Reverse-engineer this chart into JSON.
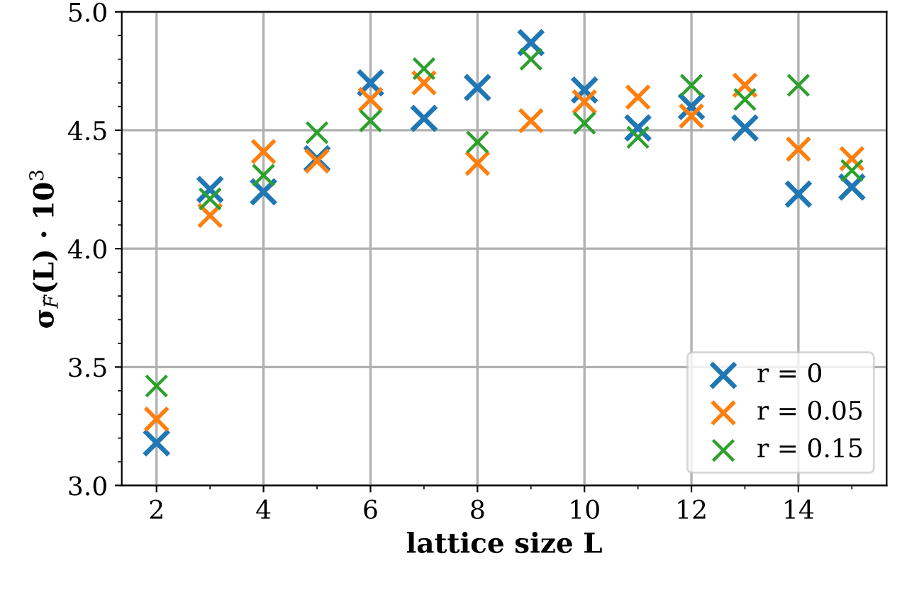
{
  "chart_data": {
    "type": "scatter",
    "xlabel": "lattice size L",
    "ylabel": "σ$_{F̃}$(L) · 10$^{3}$",
    "x": [
      2,
      3,
      4,
      5,
      6,
      7,
      8,
      9,
      10,
      11,
      12,
      13,
      14,
      15
    ],
    "series": [
      {
        "name": "r = 0",
        "color": "#1f77b4",
        "values": [
          3.18,
          4.25,
          4.24,
          4.38,
          4.7,
          4.55,
          4.68,
          4.87,
          4.67,
          4.51,
          4.6,
          4.51,
          4.23,
          4.26
        ]
      },
      {
        "name": "r = 0.05",
        "color": "#ff7f0e",
        "values": [
          3.28,
          4.14,
          4.41,
          4.37,
          4.63,
          4.7,
          4.36,
          4.54,
          4.62,
          4.64,
          4.56,
          4.69,
          4.42,
          4.38
        ]
      },
      {
        "name": "r = 0.15",
        "color": "#2ca02c",
        "values": [
          3.42,
          4.21,
          4.31,
          4.49,
          4.54,
          4.76,
          4.45,
          4.8,
          4.53,
          4.47,
          4.69,
          4.63,
          4.69,
          4.33
        ]
      }
    ],
    "xlim": [
      1.35,
      15.65
    ],
    "xticks": [
      2,
      4,
      6,
      8,
      10,
      12,
      14
    ],
    "ylim": [
      3.0,
      5.0
    ],
    "yticks": [
      {
        "value": 3.0,
        "label": "3.0"
      },
      {
        "value": 3.5,
        "label": "3.5"
      },
      {
        "value": 4.0,
        "label": "4.0"
      },
      {
        "value": 4.5,
        "label": "4.5"
      },
      {
        "value": 5.0,
        "label": "5.0"
      }
    ],
    "grid": true,
    "legend": "bottom right",
    "marker": "cross"
  }
}
